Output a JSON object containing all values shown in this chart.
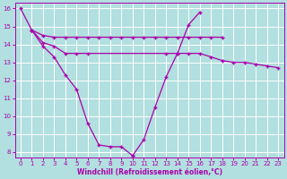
{
  "background_color": "#b2dfdf",
  "grid_color": "#ffffff",
  "line_color": "#aa00aa",
  "xlabel": "Windchill (Refroidissement éolien,°C)",
  "ylim": [
    7.7,
    16.3
  ],
  "xlim": [
    -0.5,
    23.5
  ],
  "yticks": [
    8,
    9,
    10,
    11,
    12,
    13,
    14,
    15,
    16
  ],
  "xticks": [
    0,
    1,
    2,
    3,
    4,
    5,
    6,
    7,
    8,
    9,
    10,
    11,
    12,
    13,
    14,
    15,
    16,
    17,
    18,
    19,
    20,
    21,
    22,
    23
  ],
  "line_steep": {
    "x": [
      0,
      1,
      2,
      3,
      4,
      5,
      6,
      7,
      8,
      9,
      10
    ],
    "y": [
      16.0,
      14.8,
      13.9,
      13.3,
      12.3,
      11.5,
      9.6,
      8.4,
      8.3,
      8.3,
      7.8
    ]
  },
  "line_steep2": {
    "x": [
      10,
      11,
      12,
      13,
      14,
      15,
      16
    ],
    "y": [
      7.8,
      8.7,
      10.5,
      12.2,
      13.5,
      15.1,
      15.8
    ]
  },
  "line_upper": {
    "x": [
      1,
      2,
      3,
      4,
      5,
      6,
      7,
      8,
      9,
      10,
      11,
      12,
      13,
      14,
      15,
      16,
      17,
      18
    ],
    "y": [
      14.8,
      14.5,
      14.4,
      14.4,
      14.4,
      14.4,
      14.4,
      14.4,
      14.4,
      14.4,
      14.4,
      14.4,
      14.4,
      14.4,
      14.4,
      14.4,
      14.4,
      14.4
    ]
  },
  "line_lower": {
    "x": [
      1,
      2,
      3,
      4,
      5,
      6,
      13,
      14,
      15,
      16,
      17,
      18,
      19,
      20,
      21,
      22,
      23
    ],
    "y": [
      14.8,
      14.1,
      13.9,
      13.5,
      13.5,
      13.5,
      13.5,
      13.5,
      13.5,
      13.5,
      13.3,
      13.1,
      13.0,
      13.0,
      12.9,
      12.8,
      12.7
    ]
  }
}
